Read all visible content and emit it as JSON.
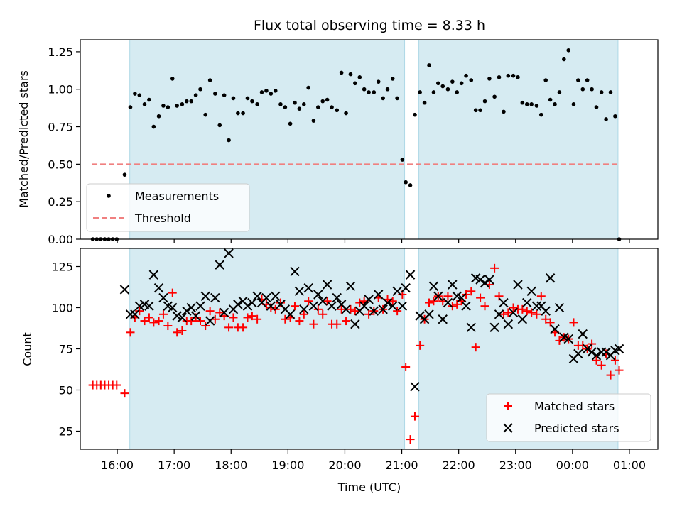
{
  "title": "Flux total observing time = 8.33 h",
  "chart_data": [
    {
      "type": "scatter",
      "ylabel": "Matched/Predicted stars",
      "ylim": [
        0,
        1.33
      ],
      "yticks": [
        "0.00",
        "0.25",
        "0.50",
        "0.75",
        "1.00",
        "1.25"
      ],
      "xlim_hours": [
        15.35,
        25.5
      ],
      "shaded_intervals": [
        [
          16.22,
          21.05
        ],
        [
          21.3,
          24.8
        ]
      ],
      "threshold": {
        "name": "Threshold",
        "value": 0.5,
        "x_range": [
          15.55,
          24.8
        ],
        "color": "#f08080"
      },
      "legend": {
        "position": "lower-left",
        "entries": [
          "Measurements",
          "Threshold"
        ]
      },
      "series": [
        {
          "name": "Measurements",
          "color": "#000000",
          "x": [
            15.57,
            15.64,
            15.71,
            15.78,
            15.85,
            15.92,
            15.99,
            16.13,
            16.23,
            16.31,
            16.39,
            16.48,
            16.56,
            16.64,
            16.73,
            16.81,
            16.89,
            16.97,
            17.05,
            17.14,
            17.22,
            17.3,
            17.38,
            17.46,
            17.55,
            17.63,
            17.72,
            17.8,
            17.88,
            17.96,
            18.04,
            18.12,
            18.21,
            18.29,
            18.37,
            18.46,
            18.54,
            18.62,
            18.7,
            18.78,
            18.87,
            18.95,
            19.04,
            19.12,
            19.2,
            19.28,
            19.36,
            19.45,
            19.53,
            19.61,
            19.69,
            19.77,
            19.86,
            19.94,
            20.02,
            20.1,
            20.18,
            20.26,
            20.34,
            20.42,
            20.51,
            20.59,
            20.67,
            20.75,
            20.84,
            20.92,
            21.01,
            21.07,
            21.15,
            21.23,
            21.32,
            21.4,
            21.48,
            21.56,
            21.64,
            21.72,
            21.81,
            21.89,
            21.97,
            22.05,
            22.13,
            22.22,
            22.3,
            22.38,
            22.46,
            22.54,
            22.63,
            22.71,
            22.79,
            22.87,
            22.96,
            23.04,
            23.12,
            23.2,
            23.28,
            23.37,
            23.45,
            23.53,
            23.61,
            23.69,
            23.77,
            23.85,
            23.93,
            24.02,
            24.1,
            24.18,
            24.26,
            24.34,
            24.42,
            24.51,
            24.59,
            24.67,
            24.75,
            24.82
          ],
          "y": [
            0.0,
            0.0,
            0.0,
            0.0,
            0.0,
            0.0,
            0.0,
            0.43,
            0.88,
            0.97,
            0.96,
            0.9,
            0.93,
            0.75,
            0.82,
            0.89,
            0.88,
            1.07,
            0.89,
            0.9,
            0.92,
            0.92,
            0.96,
            1.0,
            0.83,
            1.06,
            0.97,
            0.76,
            0.96,
            0.66,
            0.94,
            0.84,
            0.84,
            0.94,
            0.92,
            0.9,
            0.98,
            0.99,
            0.97,
            0.99,
            0.9,
            0.88,
            0.77,
            0.91,
            0.87,
            0.9,
            1.01,
            0.79,
            0.88,
            0.92,
            0.93,
            0.88,
            0.86,
            1.11,
            0.84,
            1.1,
            1.04,
            1.08,
            1.0,
            0.98,
            0.98,
            1.05,
            0.94,
            1.0,
            1.07,
            0.94,
            0.53,
            0.38,
            0.36,
            0.83,
            0.98,
            0.91,
            1.16,
            0.98,
            1.04,
            1.02,
            1.0,
            1.05,
            0.98,
            1.04,
            1.09,
            1.06,
            0.86,
            0.86,
            0.92,
            1.07,
            0.95,
            1.08,
            0.85,
            1.09,
            1.09,
            1.08,
            0.91,
            0.9,
            0.9,
            0.89,
            0.83,
            1.06,
            0.93,
            0.9,
            0.98,
            1.2,
            1.26,
            0.9,
            1.06,
            1.0,
            1.06,
            1.0,
            0.88,
            0.98,
            0.8,
            0.98,
            0.82,
            0.0
          ]
        }
      ]
    },
    {
      "type": "scatter",
      "xlabel": "Time (UTC)",
      "ylabel": "Count",
      "ylim": [
        14,
        136
      ],
      "yticks": [
        "25",
        "50",
        "75",
        "100",
        "125"
      ],
      "xlim_hours": [
        15.35,
        25.5
      ],
      "xticks": [
        "16:00",
        "17:00",
        "18:00",
        "19:00",
        "20:00",
        "21:00",
        "22:00",
        "23:00",
        "00:00",
        "01:00"
      ],
      "shaded_intervals": [
        [
          16.22,
          21.05
        ],
        [
          21.3,
          24.8
        ]
      ],
      "legend": {
        "position": "lower-right",
        "entries": [
          "Matched stars",
          "Predicted stars"
        ]
      },
      "series": [
        {
          "name": "Matched stars",
          "color": "#ff0000",
          "marker": "+",
          "x": [
            15.57,
            15.64,
            15.71,
            15.78,
            15.85,
            15.92,
            15.99,
            16.13,
            16.23,
            16.31,
            16.39,
            16.48,
            16.56,
            16.64,
            16.73,
            16.81,
            16.89,
            16.97,
            17.05,
            17.14,
            17.22,
            17.3,
            17.38,
            17.46,
            17.55,
            17.63,
            17.72,
            17.8,
            17.88,
            17.96,
            18.04,
            18.12,
            18.21,
            18.29,
            18.37,
            18.46,
            18.54,
            18.62,
            18.7,
            18.78,
            18.87,
            18.95,
            19.04,
            19.12,
            19.2,
            19.28,
            19.36,
            19.45,
            19.53,
            19.61,
            19.69,
            19.77,
            19.86,
            19.94,
            20.02,
            20.1,
            20.18,
            20.26,
            20.34,
            20.42,
            20.51,
            20.59,
            20.67,
            20.75,
            20.84,
            20.92,
            21.01,
            21.07,
            21.15,
            21.23,
            21.32,
            21.4,
            21.48,
            21.56,
            21.64,
            21.72,
            21.81,
            21.89,
            21.97,
            22.05,
            22.13,
            22.22,
            22.3,
            22.38,
            22.46,
            22.54,
            22.63,
            22.71,
            22.79,
            22.87,
            22.96,
            23.04,
            23.12,
            23.2,
            23.28,
            23.37,
            23.45,
            23.53,
            23.61,
            23.69,
            23.77,
            23.85,
            23.93,
            24.02,
            24.1,
            24.18,
            24.26,
            24.34,
            24.42,
            24.51,
            24.59,
            24.67,
            24.75,
            24.82
          ],
          "y": [
            53,
            53,
            53,
            53,
            53,
            53,
            53,
            48,
            85,
            94,
            98,
            92,
            94,
            91,
            92,
            96,
            89,
            109,
            85,
            86,
            92,
            92,
            94,
            92,
            89,
            98,
            93,
            97,
            95,
            88,
            94,
            88,
            88,
            94,
            95,
            93,
            105,
            102,
            100,
            99,
            103,
            93,
            94,
            101,
            92,
            96,
            104,
            90,
            99,
            96,
            104,
            90,
            90,
            99,
            92,
            99,
            98,
            103,
            104,
            96,
            98,
            106,
            99,
            105,
            104,
            98,
            108,
            64,
            20,
            34,
            77,
            93,
            103,
            104,
            107,
            104,
            107,
            101,
            102,
            104,
            108,
            110,
            76,
            106,
            101,
            114,
            124,
            107,
            96,
            97,
            100,
            99,
            99,
            98,
            97,
            96,
            107,
            93,
            91,
            85,
            80,
            82,
            81,
            91,
            77,
            77,
            75,
            78,
            68,
            65,
            72,
            59,
            68,
            62
          ]
        },
        {
          "name": "Predicted stars",
          "color": "#000000",
          "marker": "x",
          "x": [
            16.13,
            16.23,
            16.31,
            16.39,
            16.48,
            16.56,
            16.64,
            16.73,
            16.81,
            16.89,
            16.97,
            17.05,
            17.14,
            17.22,
            17.3,
            17.38,
            17.46,
            17.55,
            17.63,
            17.72,
            17.8,
            17.88,
            17.96,
            18.04,
            18.12,
            18.21,
            18.29,
            18.37,
            18.46,
            18.54,
            18.62,
            18.7,
            18.78,
            18.87,
            18.95,
            19.04,
            19.12,
            19.2,
            19.28,
            19.36,
            19.45,
            19.53,
            19.61,
            19.69,
            19.77,
            19.86,
            19.94,
            20.02,
            20.1,
            20.18,
            20.26,
            20.34,
            20.42,
            20.51,
            20.59,
            20.67,
            20.75,
            20.84,
            20.92,
            21.01,
            21.07,
            21.15,
            21.23,
            21.32,
            21.4,
            21.48,
            21.56,
            21.64,
            21.72,
            21.81,
            21.89,
            21.97,
            22.05,
            22.13,
            22.22,
            22.3,
            22.38,
            22.46,
            22.54,
            22.63,
            22.71,
            22.79,
            22.87,
            22.96,
            23.04,
            23.12,
            23.2,
            23.28,
            23.37,
            23.45,
            23.53,
            23.61,
            23.69,
            23.77,
            23.85,
            23.93,
            24.02,
            24.1,
            24.18,
            24.26,
            24.34,
            24.42,
            24.51,
            24.59,
            24.67,
            24.75,
            24.82
          ],
          "y": [
            111,
            96,
            96,
            101,
            102,
            101,
            120,
            112,
            106,
            101,
            100,
            95,
            94,
            98,
            100,
            95,
            101,
            107,
            92,
            106,
            126,
            97,
            133,
            99,
            102,
            104,
            101,
            103,
            107,
            103,
            106,
            101,
            107,
            102,
            99,
            96,
            122,
            110,
            99,
            112,
            101,
            108,
            104,
            114,
            101,
            106,
            102,
            99,
            113,
            90,
            98,
            101,
            105,
            98,
            108,
            99,
            103,
            101,
            110,
            101,
            112,
            120,
            52,
            95,
            93,
            96,
            113,
            107,
            93,
            103,
            114,
            107,
            106,
            101,
            88,
            118,
            117,
            115,
            117,
            88,
            96,
            103,
            90,
            97,
            114,
            93,
            103,
            110,
            101,
            101,
            98,
            118,
            87,
            100,
            82,
            81,
            69,
            72,
            84,
            75,
            73,
            71,
            73,
            73,
            71,
            74,
            75
          ]
        }
      ]
    }
  ]
}
